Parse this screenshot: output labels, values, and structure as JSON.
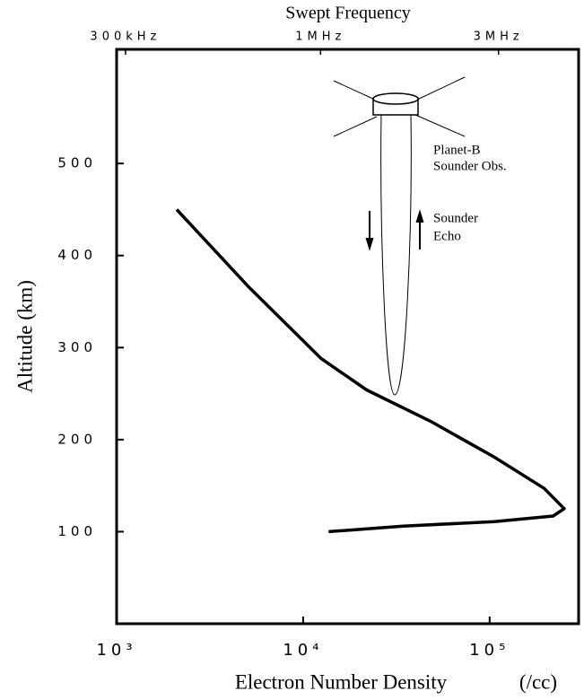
{
  "chart_data": {
    "type": "line",
    "title": "Swept Frequency",
    "x_label": "Electron Number Density",
    "x_unit": "(/cc)",
    "y_label": "Altitude  (km)",
    "xscale": "log",
    "xlim": [
      1000,
      300000
    ],
    "ylim": [
      0,
      624
    ],
    "xticks": [
      {
        "value": 1000,
        "label": "10³"
      },
      {
        "value": 10000,
        "label": "10⁴"
      },
      {
        "value": 100000,
        "label": "10⁵"
      }
    ],
    "yticks": [
      100,
      200,
      300,
      400,
      500
    ],
    "x2ticks": [
      {
        "value": 1116,
        "label": "300kHz"
      },
      {
        "value": 12400,
        "label": "1MHz"
      },
      {
        "value": 111600,
        "label": "3MHz"
      }
    ],
    "series": [
      {
        "color": "#000000",
        "x": [
          2100,
          5100,
          12500,
          21900,
          48200,
          106000,
          196000,
          251000,
          219000,
          106000,
          34400,
          13700
        ],
        "values": [
          450,
          366,
          288,
          254,
          220,
          181,
          147,
          125,
          117,
          111,
          106,
          100
        ]
      }
    ],
    "annotations": [
      "Planet-B",
      "Sounder Obs.",
      "Sounder",
      "Echo"
    ]
  }
}
